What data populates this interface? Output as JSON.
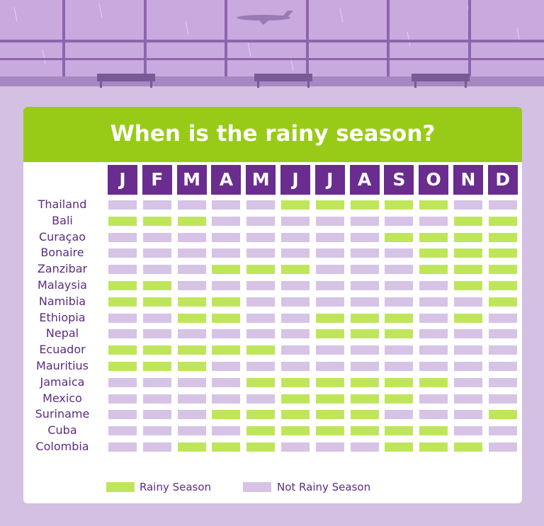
{
  "colors": {
    "background": "#d3c0e3",
    "window": "#caa9df",
    "frame": "#8e65ad",
    "banner": "#98cb17",
    "month_box": "#6a2c8f",
    "rainy": "#bfe65b",
    "not_rainy": "#d6c3e5",
    "text": "#5b2b84"
  },
  "chart_data": {
    "type": "heatmap",
    "title": "When is the rainy season?",
    "months": [
      "J",
      "F",
      "M",
      "A",
      "M",
      "J",
      "J",
      "A",
      "S",
      "O",
      "N",
      "D"
    ],
    "countries": [
      "Thailand",
      "Bali",
      "Curaçao",
      "Bonaire",
      "Zanzibar",
      "Malaysia",
      "Namibia",
      "Ethiopia",
      "Nepal",
      "Ecuador",
      "Mauritius",
      "Jamaica",
      "Mexico",
      "Suriname",
      "Cuba",
      "Colombia"
    ],
    "rainy": [
      [
        0,
        0,
        0,
        0,
        0,
        1,
        1,
        1,
        1,
        1,
        0,
        0
      ],
      [
        1,
        1,
        1,
        0,
        0,
        0,
        0,
        0,
        0,
        0,
        1,
        1
      ],
      [
        0,
        0,
        0,
        0,
        0,
        0,
        0,
        0,
        1,
        1,
        1,
        1
      ],
      [
        0,
        0,
        0,
        0,
        0,
        0,
        0,
        0,
        0,
        1,
        1,
        1
      ],
      [
        0,
        0,
        0,
        1,
        1,
        1,
        0,
        0,
        0,
        1,
        1,
        1
      ],
      [
        1,
        1,
        0,
        0,
        0,
        0,
        0,
        0,
        0,
        0,
        1,
        1
      ],
      [
        1,
        1,
        1,
        1,
        0,
        0,
        0,
        0,
        0,
        0,
        0,
        1
      ],
      [
        0,
        0,
        1,
        1,
        0,
        0,
        1,
        1,
        1,
        0,
        1,
        0
      ],
      [
        0,
        0,
        0,
        0,
        0,
        0,
        1,
        1,
        1,
        0,
        0,
        0
      ],
      [
        1,
        1,
        1,
        1,
        1,
        0,
        0,
        0,
        0,
        0,
        0,
        0
      ],
      [
        1,
        1,
        1,
        0,
        0,
        0,
        0,
        0,
        0,
        0,
        0,
        0
      ],
      [
        0,
        0,
        0,
        0,
        1,
        1,
        1,
        1,
        1,
        1,
        0,
        0
      ],
      [
        0,
        0,
        0,
        0,
        0,
        1,
        1,
        1,
        1,
        0,
        0,
        0
      ],
      [
        0,
        0,
        0,
        1,
        1,
        1,
        1,
        1,
        0,
        0,
        0,
        1
      ],
      [
        0,
        0,
        0,
        0,
        1,
        1,
        1,
        1,
        1,
        1,
        0,
        0
      ],
      [
        0,
        0,
        1,
        1,
        1,
        0,
        0,
        0,
        1,
        1,
        1,
        0
      ]
    ],
    "legend": {
      "rainy_label": "Rainy Season",
      "not_rainy_label": "Not Rainy Season"
    }
  }
}
